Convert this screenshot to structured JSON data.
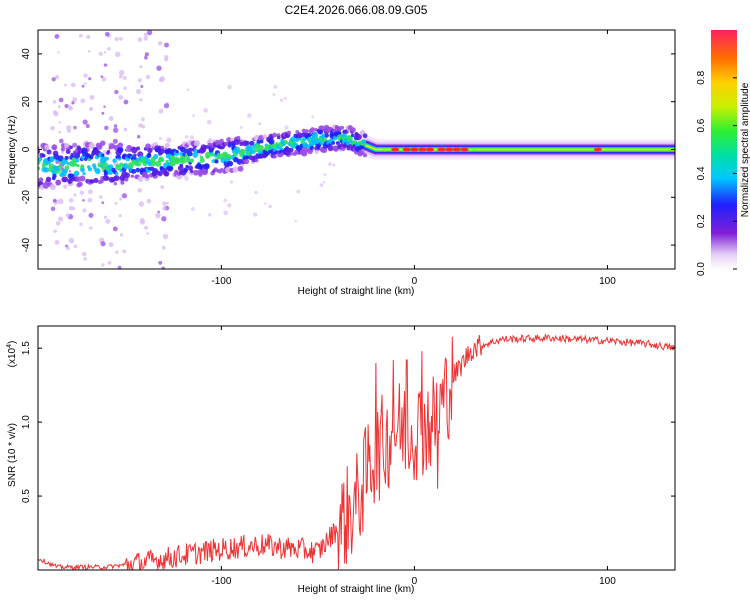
{
  "title": "C2E4.2026.066.08.09.G05",
  "chart_data": [
    {
      "type": "heatmap",
      "name": "spectrogram",
      "xlabel": "Height of straight line (km)",
      "ylabel": "Frequency (Hz)",
      "xlim": [
        -195,
        135
      ],
      "ylim": [
        -50,
        50
      ],
      "xticks": [
        -100,
        0,
        100
      ],
      "yticks": [
        -40,
        -20,
        0,
        20,
        40
      ],
      "colorbar": {
        "label": "Normalized spectral amplitude",
        "range": [
          0,
          1
        ],
        "ticks": [
          "0.0",
          "0.2",
          "0.4",
          "0.6",
          "0.8"
        ],
        "tick_values": [
          0.0,
          0.2,
          0.4,
          0.6,
          0.8
        ]
      },
      "ridge": [
        {
          "x": -195,
          "freq": -7
        },
        {
          "x": -150,
          "freq": -6
        },
        {
          "x": -100,
          "freq": -3
        },
        {
          "x": -70,
          "freq": 2
        },
        {
          "x": -50,
          "freq": 4
        },
        {
          "x": -35,
          "freq": 5
        },
        {
          "x": -20,
          "freq": 0
        },
        {
          "x": 0,
          "freq": 0
        },
        {
          "x": 135,
          "freq": 0
        }
      ]
    },
    {
      "type": "line",
      "name": "snr",
      "xlabel": "Height of straight line (km)",
      "ylabel": "SNR (10 * v/v)",
      "multiplier_label": "(x10",
      "multiplier_exp": "4",
      "multiplier_close": ")",
      "xlim": [
        -195,
        135
      ],
      "ylim": [
        0,
        1.65
      ],
      "xticks": [
        -100,
        0,
        100
      ],
      "yticks": [
        0.5,
        1.0,
        1.5
      ],
      "ytick_labels": [
        "0.5",
        "1.0",
        "1.5"
      ],
      "color": "#ee3333",
      "series": [
        {
          "x": -195,
          "y": 0.08
        },
        {
          "x": -185,
          "y": 0.02
        },
        {
          "x": -160,
          "y": 0.02
        },
        {
          "x": -140,
          "y": 0.05
        },
        {
          "x": -120,
          "y": 0.1
        },
        {
          "x": -100,
          "y": 0.14
        },
        {
          "x": -80,
          "y": 0.17
        },
        {
          "x": -60,
          "y": 0.14
        },
        {
          "x": -50,
          "y": 0.12
        },
        {
          "x": -40,
          "y": 0.28
        },
        {
          "x": -30,
          "y": 0.45
        },
        {
          "x": -22,
          "y": 0.75
        },
        {
          "x": -10,
          "y": 0.95
        },
        {
          "x": 0,
          "y": 0.95
        },
        {
          "x": 10,
          "y": 1.0
        },
        {
          "x": 20,
          "y": 1.3
        },
        {
          "x": 30,
          "y": 1.5
        },
        {
          "x": 45,
          "y": 1.56
        },
        {
          "x": 70,
          "y": 1.57
        },
        {
          "x": 100,
          "y": 1.55
        },
        {
          "x": 120,
          "y": 1.53
        },
        {
          "x": 135,
          "y": 1.5
        }
      ],
      "spikes": [
        {
          "x": -20,
          "y": 1.4
        },
        {
          "x": -11,
          "y": 1.42
        },
        {
          "x": -4,
          "y": 1.42
        },
        {
          "x": 4,
          "y": 1.48
        },
        {
          "x": 12,
          "y": 0.55
        }
      ]
    }
  ]
}
